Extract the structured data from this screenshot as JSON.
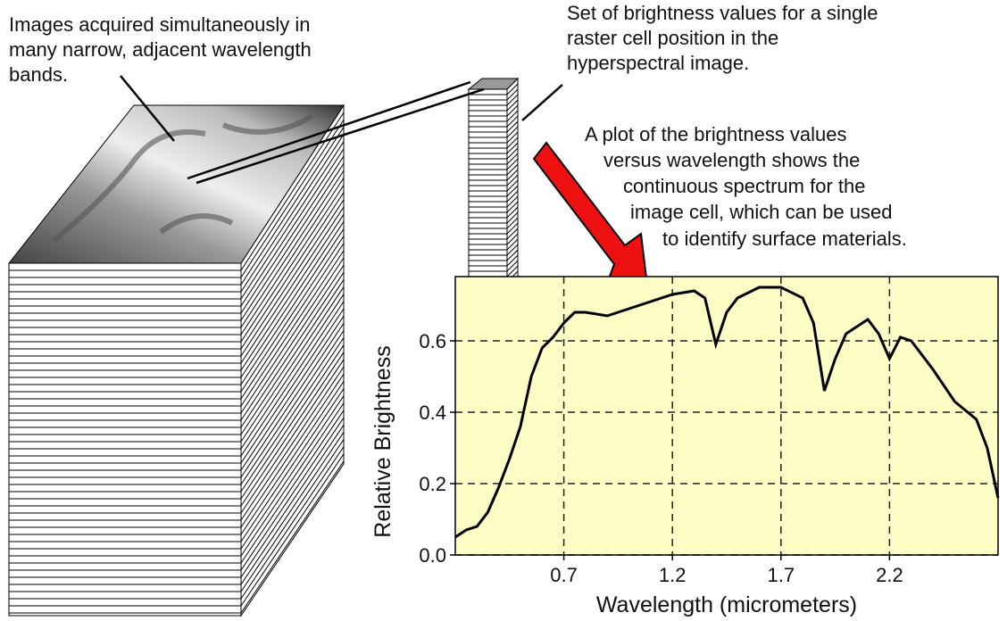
{
  "annotations": {
    "bands": [
      "Images acquired simultaneously in",
      "many narrow, adjacent wavelength",
      "bands."
    ],
    "cell": [
      "Set of brightness values for a single",
      "raster cell position in the",
      "hyperspectral image."
    ],
    "plot": [
      "A plot of the brightness values",
      "versus wavelength shows the",
      "continuous spectrum for the",
      "image cell, which can be used",
      "to identify surface materials."
    ]
  },
  "chart_data": {
    "type": "line",
    "x_label": "Wavelength  (micrometers)",
    "y_label": "Relative Brightness",
    "xlim": [
      0.2,
      2.7
    ],
    "ylim": [
      0,
      0.78
    ],
    "xticks": [
      0.7,
      1.2,
      1.7,
      2.2
    ],
    "yticks": [
      {
        "value": 0,
        "label": "0.0"
      },
      0.2,
      0.4,
      0.6
    ],
    "grid": true,
    "background": "#fdfdc6",
    "series": [
      {
        "color": "#000000",
        "x": [
          0.2,
          0.25,
          0.3,
          0.35,
          0.4,
          0.45,
          0.5,
          0.55,
          0.6,
          0.65,
          0.7,
          0.75,
          0.8,
          0.9,
          1.0,
          1.1,
          1.2,
          1.3,
          1.35,
          1.4,
          1.45,
          1.5,
          1.6,
          1.7,
          1.8,
          1.85,
          1.9,
          1.95,
          2.0,
          2.1,
          2.15,
          2.2,
          2.25,
          2.3,
          2.4,
          2.5,
          2.6,
          2.65,
          2.7
        ],
        "values": [
          0.05,
          0.07,
          0.08,
          0.12,
          0.19,
          0.27,
          0.36,
          0.5,
          0.58,
          0.61,
          0.65,
          0.68,
          0.68,
          0.67,
          0.69,
          0.71,
          0.73,
          0.74,
          0.72,
          0.59,
          0.68,
          0.72,
          0.75,
          0.75,
          0.72,
          0.65,
          0.46,
          0.55,
          0.62,
          0.66,
          0.62,
          0.55,
          0.61,
          0.6,
          0.52,
          0.43,
          0.38,
          0.3,
          0.16
        ]
      }
    ]
  }
}
